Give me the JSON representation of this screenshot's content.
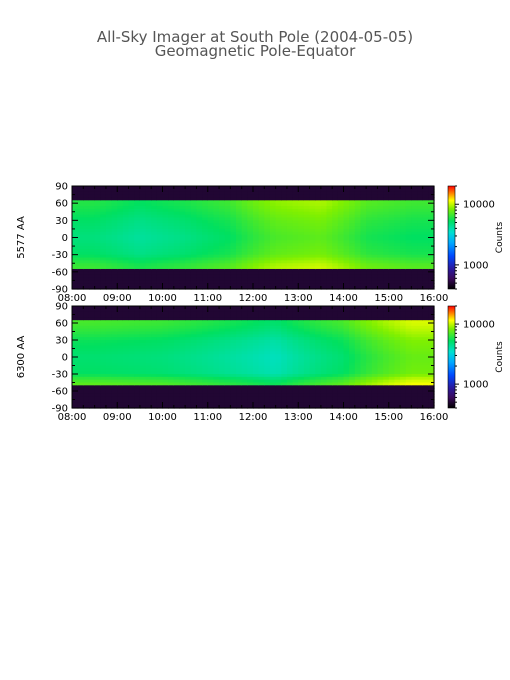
{
  "chart_data": {
    "type": "heatmap",
    "title": "All-Sky Imager at South Pole (2004-05-05)",
    "subtitle": "Geomagnetic Pole-Equator",
    "x_ticks": [
      "08:00",
      "09:00",
      "10:00",
      "11:00",
      "12:00",
      "13:00",
      "14:00",
      "15:00",
      "16:00"
    ],
    "xlim": [
      "08:00",
      "16:00"
    ],
    "y_ticks": [
      90,
      60,
      30,
      0,
      -30,
      -60,
      -90
    ],
    "ylim": [
      -90,
      90
    ],
    "colorbar": {
      "label": "Counts",
      "scale": "log",
      "ticks": [
        1000,
        10000
      ],
      "tick_labels": [
        "1000",
        "10000"
      ],
      "range": [
        400,
        20000
      ],
      "colormap": "rainbow"
    },
    "panels": [
      {
        "ylabel": "5577 AA",
        "valid_lat_range": [
          -55,
          63
        ],
        "background_counts": 500,
        "lat_profile": [
          {
            "lat": 60,
            "counts": 8000
          },
          {
            "lat": 30,
            "counts": 6000
          },
          {
            "lat": 0,
            "counts": 5000
          },
          {
            "lat": -30,
            "counts": 6000
          },
          {
            "lat": -50,
            "counts": 9500
          }
        ],
        "time_features": [
          {
            "time": "08:30",
            "counts": 4500
          },
          {
            "time": "09:30",
            "counts": 3500
          },
          {
            "time": "10:30",
            "counts": 4200
          },
          {
            "time": "11:30",
            "counts": 5500
          },
          {
            "time": "12:30",
            "counts": 9500
          },
          {
            "time": "13:30",
            "counts": 11000
          },
          {
            "time": "14:30",
            "counts": 6500
          },
          {
            "time": "15:30",
            "counts": 5500
          }
        ]
      },
      {
        "ylabel": "6300 AA",
        "valid_lat_range": [
          -50,
          63
        ],
        "background_counts": 500,
        "lat_profile": [
          {
            "lat": 60,
            "counts": 8500
          },
          {
            "lat": 30,
            "counts": 5500
          },
          {
            "lat": 0,
            "counts": 4500
          },
          {
            "lat": -30,
            "counts": 5000
          },
          {
            "lat": -48,
            "counts": 10000
          }
        ],
        "time_features": [
          {
            "time": "08:30",
            "counts": 5500
          },
          {
            "time": "10:00",
            "counts": 5000
          },
          {
            "time": "12:30",
            "counts": 3000
          },
          {
            "time": "14:00",
            "counts": 5500
          },
          {
            "time": "15:30",
            "counts": 13000
          }
        ]
      }
    ]
  }
}
